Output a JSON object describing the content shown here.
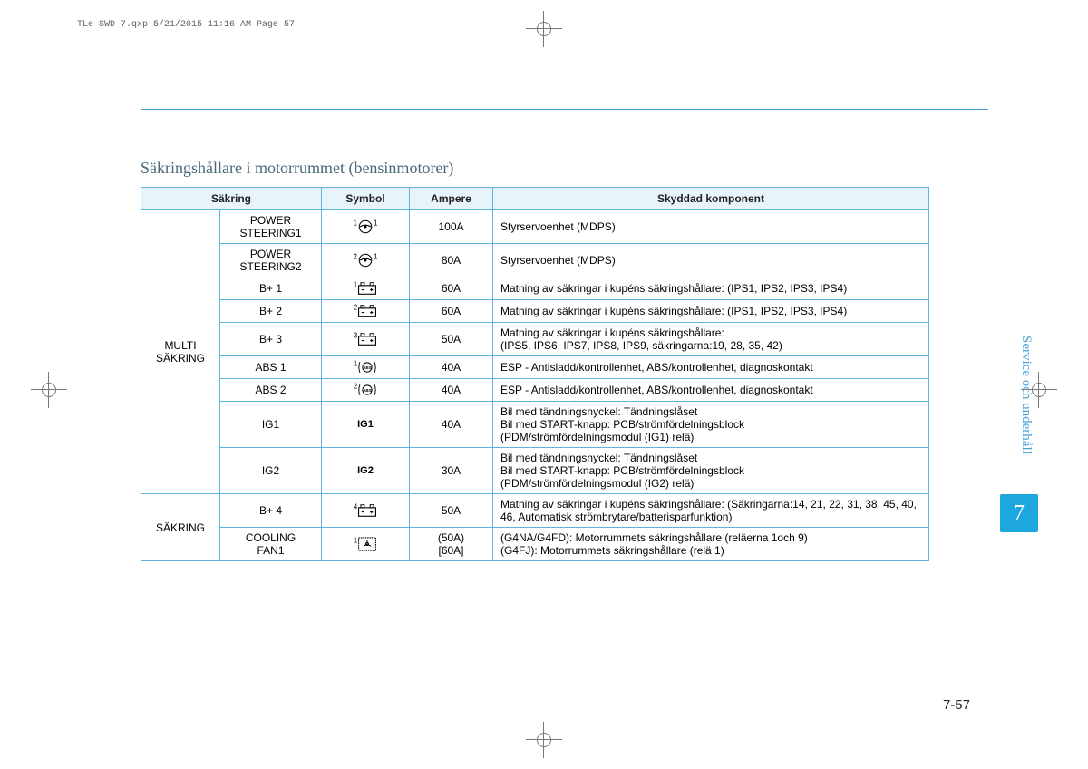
{
  "header": {
    "file_info": "TLe SWD 7.qxp  5/21/2015  11:16 AM  Page 57"
  },
  "title": "Säkringshållare i motorrummet (bensinmotorer)",
  "side_label": "Service och underhåll",
  "chapter_number": "7",
  "page_number": "7-57",
  "columns": {
    "fuse": "Säkring",
    "symbol": "Symbol",
    "ampere": "Ampere",
    "component": "Skyddad komponent"
  },
  "groups": [
    {
      "label": "MULTI SÄKRING",
      "rows": [
        {
          "fuse": "POWER STEERING1",
          "symbol_prefix": "1",
          "symbol_suffix": "1",
          "symbol_type": "wheel",
          "ampere": "100A",
          "desc": "Styrservoenhet (MDPS)"
        },
        {
          "fuse": "POWER STEERING2",
          "symbol_prefix": "2",
          "symbol_suffix": "1",
          "symbol_type": "wheel",
          "ampere": "80A",
          "desc": "Styrservoenhet (MDPS)"
        },
        {
          "fuse": "B+ 1",
          "symbol_prefix": "1",
          "symbol_suffix": "",
          "symbol_type": "battery",
          "ampere": "60A",
          "desc": "Matning av säkringar i kupéns säkringshållare: (IPS1, IPS2, IPS3, IPS4)"
        },
        {
          "fuse": "B+ 2",
          "symbol_prefix": "2",
          "symbol_suffix": "",
          "symbol_type": "battery",
          "ampere": "60A",
          "desc": "Matning av säkringar i kupéns säkringshållare: (IPS1, IPS2, IPS3, IPS4)"
        },
        {
          "fuse": "B+ 3",
          "symbol_prefix": "3",
          "symbol_suffix": "",
          "symbol_type": "battery",
          "ampere": "50A",
          "desc": "Matning av säkringar i kupéns säkringshållare:\n(IPS5, IPS6, IPS7, IPS8, IPS9, säkringarna:19, 28, 35, 42)"
        },
        {
          "fuse": "ABS 1",
          "symbol_prefix": "1",
          "symbol_suffix": "",
          "symbol_type": "abs",
          "ampere": "40A",
          "desc": "ESP - Antisladd/kontrollenhet, ABS/kontrollenhet, diagnoskontakt"
        },
        {
          "fuse": "ABS 2",
          "symbol_prefix": "2",
          "symbol_suffix": "",
          "symbol_type": "abs",
          "ampere": "40A",
          "desc": "ESP - Antisladd/kontrollenhet, ABS/kontrollenhet, diagnoskontakt"
        },
        {
          "fuse": "IG1",
          "symbol_prefix": "",
          "symbol_suffix": "",
          "symbol_type": "text",
          "symbol_text": "IG1",
          "ampere": "40A",
          "desc": "Bil med tändningsnyckel: Tändningslåset\nBil med START-knapp: PCB/strömfördelningsblock\n(PDM/strömfördelningsmodul (IG1) relä)"
        },
        {
          "fuse": "IG2",
          "symbol_prefix": "",
          "symbol_suffix": "",
          "symbol_type": "text",
          "symbol_text": "IG2",
          "ampere": "30A",
          "desc": "Bil med tändningsnyckel: Tändningslåset\nBil med START-knapp: PCB/strömfördelningsblock\n(PDM/strömfördelningsmodul (IG2) relä)"
        }
      ]
    },
    {
      "label": "SÄKRING",
      "rows": [
        {
          "fuse": "B+ 4",
          "symbol_prefix": "4",
          "symbol_suffix": "",
          "symbol_type": "battery",
          "ampere": "50A",
          "desc": "Matning av säkringar i kupéns säkringshållare: (Säkringarna:14, 21, 22, 31, 38, 45, 40, 46, Automatisk strömbrytare/batterisparfunktion)"
        },
        {
          "fuse": "COOLING FAN1",
          "symbol_prefix": "1",
          "symbol_suffix": "",
          "symbol_type": "fan",
          "ampere": "(50A)\n[60A]",
          "desc": "(G4NA/G4FD): Motorrummets säkringshållare (reläerna 1och 9)\n(G4FJ): Motorrummets säkringshållare (relä 1)"
        }
      ]
    }
  ],
  "colors": {
    "border": "#5fb3e0",
    "header_bg": "#e8f4fb",
    "title": "#4a6a7a",
    "chapter_bg": "#1ea6df",
    "side_text": "#4aa3d8"
  }
}
